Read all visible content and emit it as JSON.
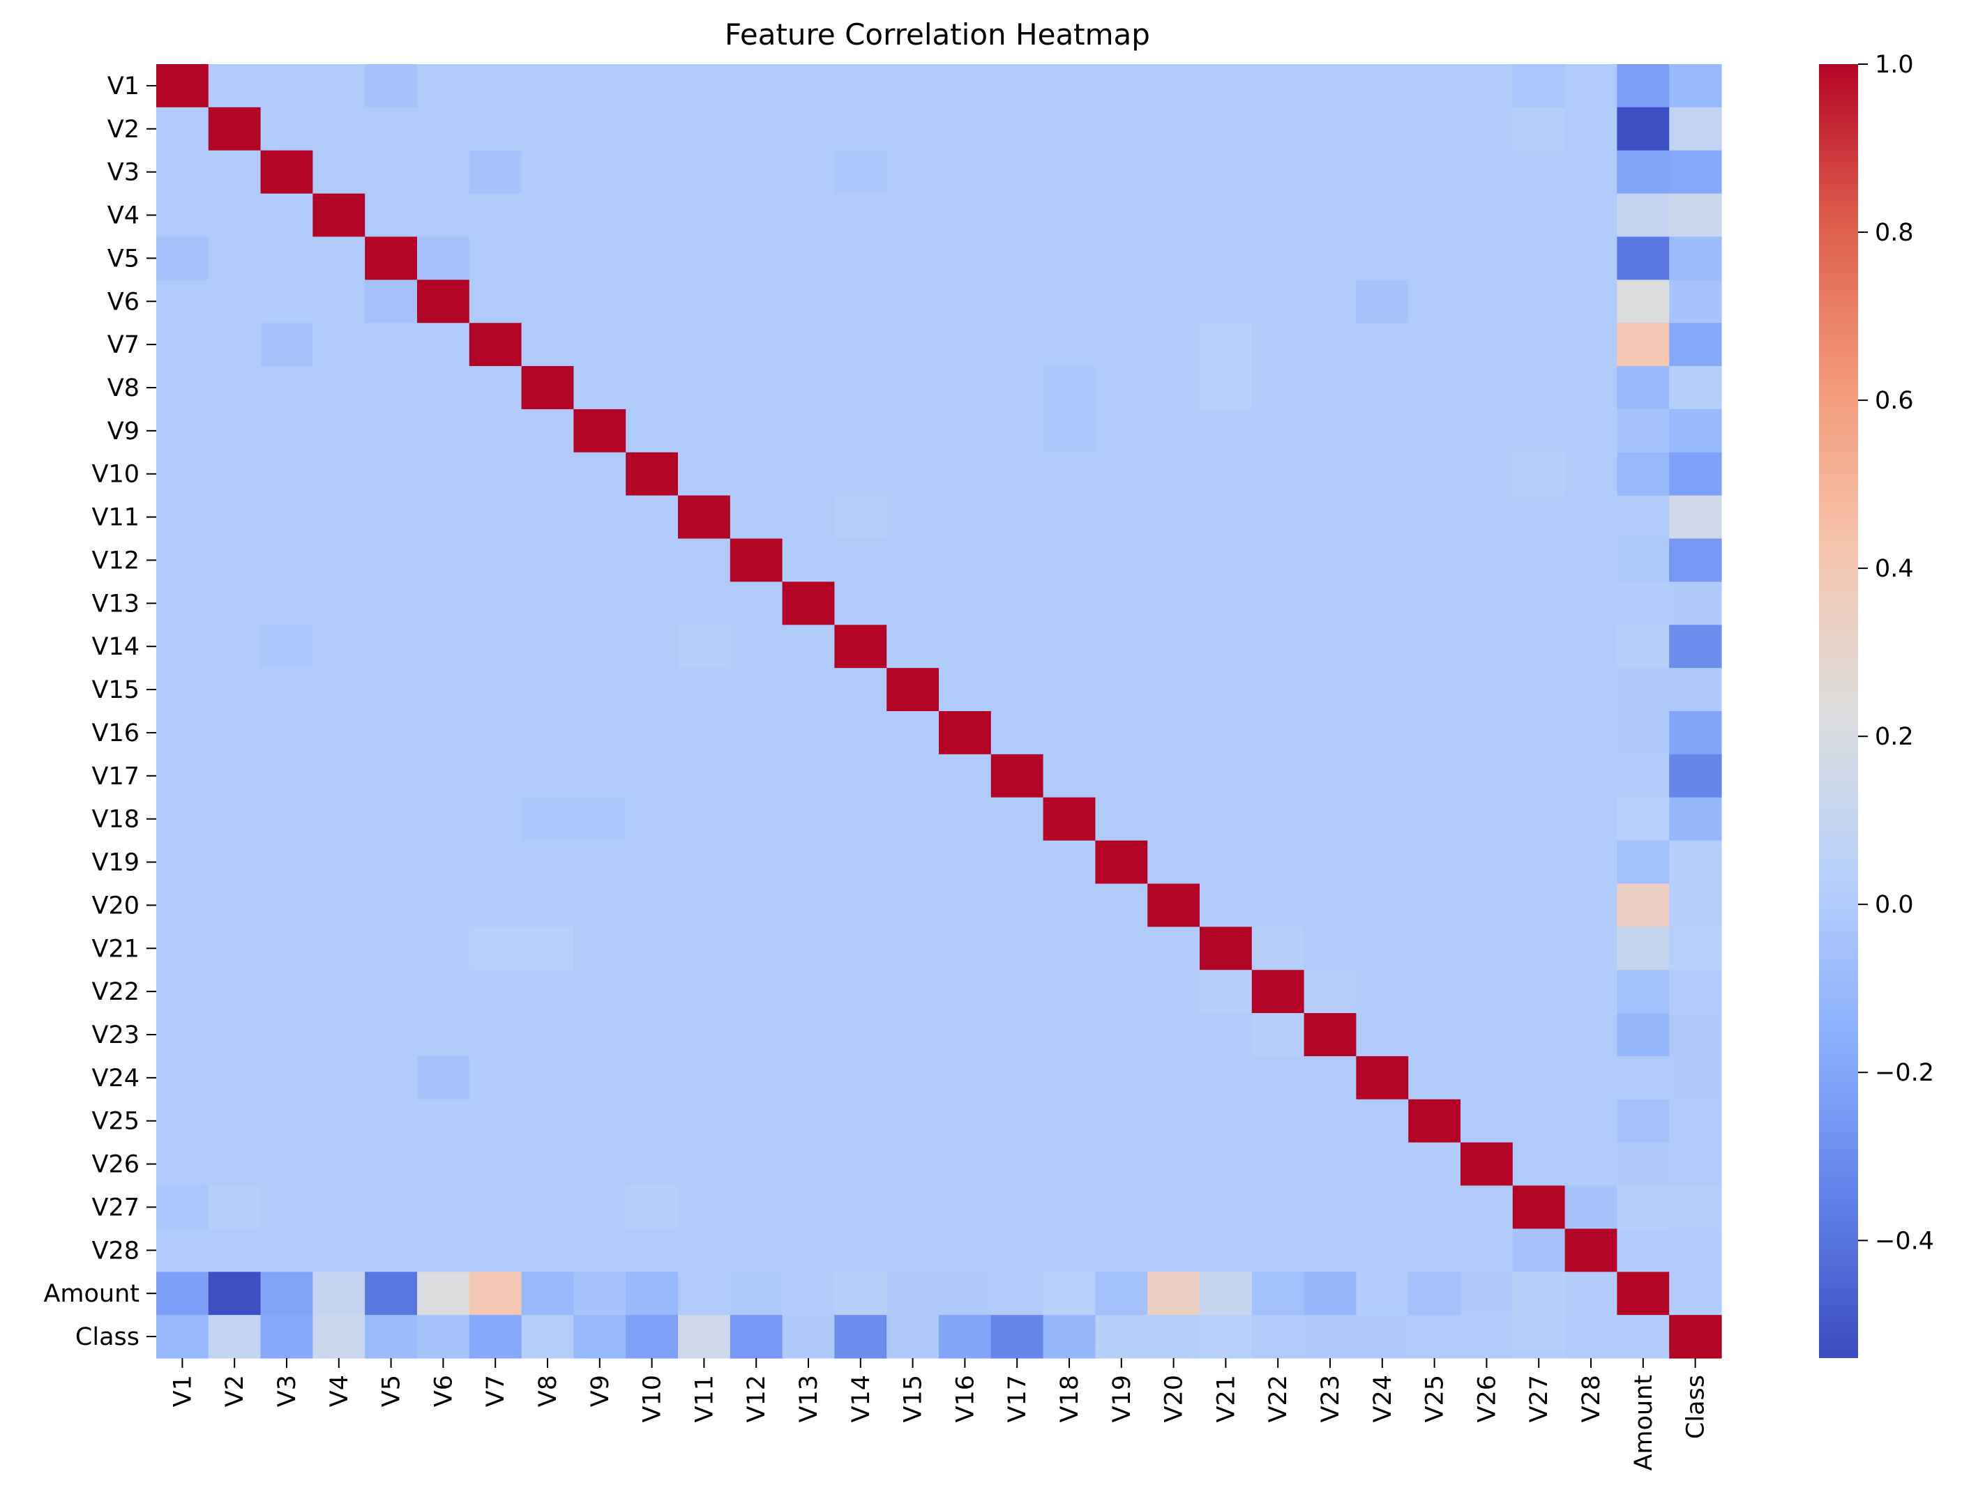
{
  "chart_data": {
    "type": "heatmap",
    "title": "Feature Correlation Heatmap",
    "xlabel": "",
    "ylabel": "",
    "colormap": "coolwarm",
    "grid": false,
    "colorbar": {
      "position": "right",
      "vmin": -0.54,
      "vmax": 1.0,
      "ticks": [
        1.0,
        0.8,
        0.6,
        0.4,
        0.2,
        0.0,
        -0.2,
        -0.4
      ],
      "tick_labels": [
        "1.0",
        "0.8",
        "0.6",
        "0.4",
        "0.2",
        "0.0",
        "−0.2",
        "−0.4"
      ]
    },
    "labels": [
      "V1",
      "V2",
      "V3",
      "V4",
      "V5",
      "V6",
      "V7",
      "V8",
      "V9",
      "V10",
      "V11",
      "V12",
      "V13",
      "V14",
      "V15",
      "V16",
      "V17",
      "V18",
      "V19",
      "V20",
      "V21",
      "V22",
      "V23",
      "V24",
      "V25",
      "V26",
      "V27",
      "V28",
      "Amount",
      "Class"
    ],
    "amount_correlations": {
      "V1": -0.23,
      "V2": -0.53,
      "V3": -0.21,
      "V4": 0.1,
      "V5": -0.39,
      "V6": 0.22,
      "V7": 0.4,
      "V8": -0.1,
      "V9": -0.04,
      "V10": -0.1,
      "V11": 0.0,
      "V12": -0.01,
      "V13": 0.01,
      "V14": 0.03,
      "V15": -0.003,
      "V16": -0.004,
      "V17": 0.01,
      "V18": 0.04,
      "V19": -0.06,
      "V20": 0.34,
      "V21": 0.11,
      "V22": -0.06,
      "V23": -0.11,
      "V24": 0.005,
      "V25": -0.05,
      "V26": -0.003,
      "V27": 0.03,
      "V28": 0.01,
      "Class": 0.006
    },
    "class_correlations": {
      "V1": -0.1,
      "V2": 0.09,
      "V3": -0.19,
      "V4": 0.13,
      "V5": -0.09,
      "V6": -0.04,
      "V7": -0.19,
      "V8": 0.02,
      "V9": -0.1,
      "V10": -0.22,
      "V11": 0.15,
      "V12": -0.26,
      "V13": -0.005,
      "V14": -0.3,
      "V15": -0.004,
      "V16": -0.2,
      "V17": -0.33,
      "V18": -0.11,
      "V19": 0.03,
      "V20": 0.02,
      "V21": 0.04,
      "V22": 0.001,
      "V23": -0.003,
      "V24": -0.007,
      "V25": 0.003,
      "V26": 0.004,
      "V27": 0.018,
      "V28": 0.01,
      "Amount": 0.006
    },
    "feature_pairs_nonzero": [
      {
        "a": "V1",
        "b": "V5",
        "v": -0.04
      },
      {
        "a": "V2",
        "b": "V27",
        "v": 0.02
      },
      {
        "a": "V3",
        "b": "V7",
        "v": -0.04
      },
      {
        "a": "V5",
        "b": "V6",
        "v": -0.05
      },
      {
        "a": "V6",
        "b": "V24",
        "v": -0.04
      },
      {
        "a": "V7",
        "b": "V21",
        "v": 0.04
      },
      {
        "a": "V8",
        "b": "V21",
        "v": 0.04
      },
      {
        "a": "V10",
        "b": "V27",
        "v": 0.03
      },
      {
        "a": "V11",
        "b": "V14",
        "v": 0.02
      },
      {
        "a": "V1",
        "b": "V27",
        "v": -0.03
      },
      {
        "a": "V3",
        "b": "V14",
        "v": -0.02
      },
      {
        "a": "V4",
        "b": "V14",
        "v": 0.01
      },
      {
        "a": "V27",
        "b": "V28",
        "v": -0.04
      },
      {
        "a": "V8",
        "b": "V18",
        "v": -0.02
      },
      {
        "a": "V9",
        "b": "V18",
        "v": -0.02
      },
      {
        "a": "V21",
        "b": "V22",
        "v": 0.02
      },
      {
        "a": "V22",
        "b": "V23",
        "v": 0.02
      }
    ]
  }
}
